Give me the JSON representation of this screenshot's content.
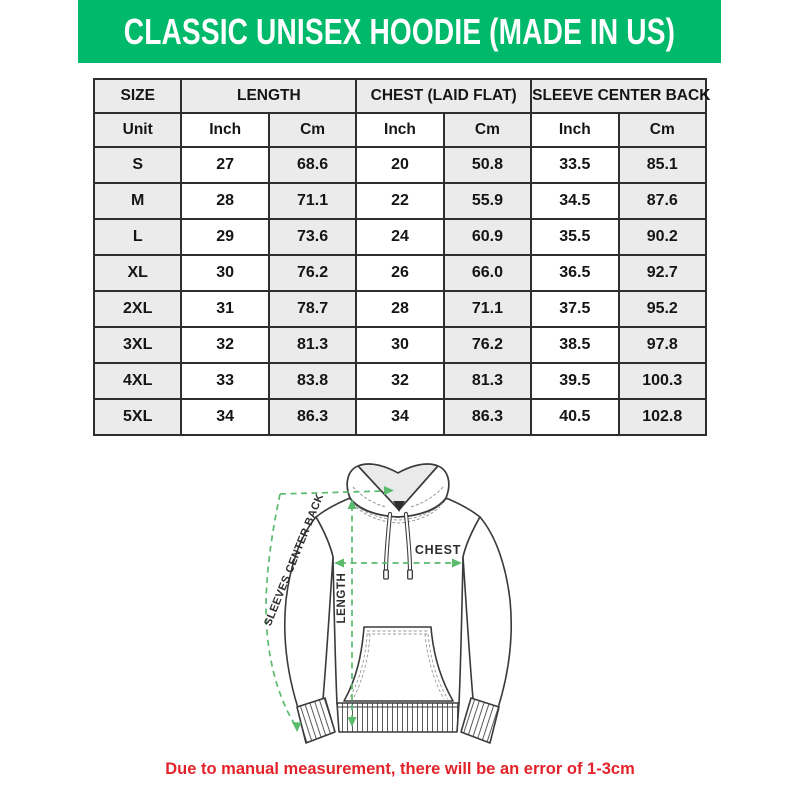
{
  "banner": {
    "title": "CLASSIC UNISEX HOODIE (MADE IN US)",
    "bg_color": "#00b96a",
    "text_color": "#ffffff"
  },
  "size_chart": {
    "section_headers": [
      {
        "label": "SIZE",
        "colspan": 1
      },
      {
        "label": "LENGTH",
        "colspan": 2
      },
      {
        "label": "CHEST (LAID FLAT)",
        "colspan": 2
      },
      {
        "label": "SLEEVE CENTER BACK",
        "colspan": 2
      }
    ],
    "unit_row": [
      "Unit",
      "Inch",
      "Cm",
      "Inch",
      "Cm",
      "Inch",
      "Cm"
    ],
    "rows": [
      [
        "S",
        "27",
        "68.6",
        "20",
        "50.8",
        "33.5",
        "85.1"
      ],
      [
        "M",
        "28",
        "71.1",
        "22",
        "55.9",
        "34.5",
        "87.6"
      ],
      [
        "L",
        "29",
        "73.6",
        "24",
        "60.9",
        "35.5",
        "90.2"
      ],
      [
        "XL",
        "30",
        "76.2",
        "26",
        "66.0",
        "36.5",
        "92.7"
      ],
      [
        "2XL",
        "31",
        "78.7",
        "28",
        "71.1",
        "37.5",
        "95.2"
      ],
      [
        "3XL",
        "32",
        "81.3",
        "30",
        "76.2",
        "38.5",
        "97.8"
      ],
      [
        "4XL",
        "33",
        "83.8",
        "32",
        "81.3",
        "39.5",
        "100.3"
      ],
      [
        "5XL",
        "34",
        "86.3",
        "34",
        "86.3",
        "40.5",
        "102.8"
      ]
    ],
    "stripe_color": "#ebebeb",
    "border_color": "#2e2e2e"
  },
  "chart_data": {
    "type": "table",
    "title": "CLASSIC UNISEX HOODIE (MADE IN US)",
    "columns": [
      "Size",
      "Length Inch",
      "Length Cm",
      "Chest (Laid Flat) Inch",
      "Chest (Laid Flat) Cm",
      "Sleeve Center Back Inch",
      "Sleeve Center Back Cm"
    ],
    "rows": [
      [
        "S",
        27,
        68.6,
        20,
        50.8,
        33.5,
        85.1
      ],
      [
        "M",
        28,
        71.1,
        22,
        55.9,
        34.5,
        87.6
      ],
      [
        "L",
        29,
        73.6,
        24,
        60.9,
        35.5,
        90.2
      ],
      [
        "XL",
        30,
        76.2,
        26,
        66.0,
        36.5,
        92.7
      ],
      [
        "2XL",
        31,
        78.7,
        28,
        71.1,
        37.5,
        95.2
      ],
      [
        "3XL",
        32,
        81.3,
        30,
        76.2,
        38.5,
        97.8
      ],
      [
        "4XL",
        33,
        83.8,
        32,
        81.3,
        39.5,
        100.3
      ],
      [
        "5XL",
        34,
        86.3,
        34,
        86.3,
        40.5,
        102.8
      ]
    ]
  },
  "diagram": {
    "labels": {
      "sleeve": "SLEEVES CENTER BACK",
      "chest": "CHEST",
      "length": "LENGTH"
    },
    "arrow_color": "#5bbb6e"
  },
  "footer": {
    "note": "Due to manual measurement, there will be an error of 1-3cm",
    "color": "#e2232a"
  }
}
